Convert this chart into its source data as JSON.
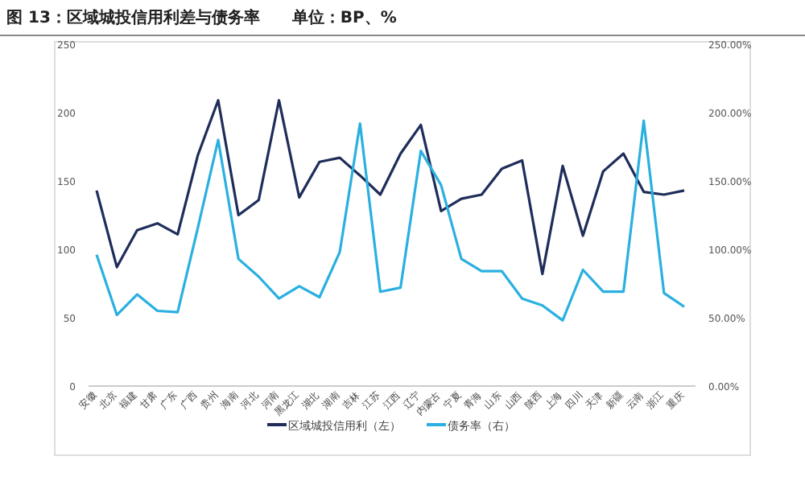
{
  "chart_data": {
    "type": "line",
    "title": "图 13：区域城投信用利差与债务率　　单位：BP、%",
    "categories": [
      "安徽",
      "北京",
      "福建",
      "甘肃",
      "广东",
      "广西",
      "贵州",
      "海南",
      "河北",
      "河南",
      "黑龙江",
      "湖北",
      "湖南",
      "吉林",
      "江苏",
      "江西",
      "辽宁",
      "内蒙古",
      "宁夏",
      "青海",
      "山东",
      "山西",
      "陕西",
      "上海",
      "四川",
      "天津",
      "新疆",
      "云南",
      "浙江",
      "重庆"
    ],
    "series": [
      {
        "name": "区域城投信用利（左）",
        "color": "#1f2d5a",
        "values": [
          143,
          87,
          114,
          119,
          111,
          169,
          209,
          125,
          136,
          209,
          138,
          164,
          167,
          154,
          140,
          170,
          191,
          128,
          137,
          140,
          159,
          165,
          82,
          161,
          110,
          157,
          170,
          142,
          140,
          143
        ]
      },
      {
        "name": "债务率（右）",
        "color": "#2ab0e0",
        "axis": "y2",
        "values": [
          96,
          52,
          67,
          55,
          54,
          116,
          180,
          93,
          80,
          64,
          73,
          65,
          98,
          192,
          69,
          72,
          172,
          147,
          93,
          84,
          84,
          64,
          59,
          48,
          85,
          69,
          69,
          194,
          68,
          58
        ]
      }
    ],
    "ylim": [
      0,
      250
    ],
    "yticks": [
      0,
      50,
      100,
      150,
      200,
      250
    ],
    "y2lim": [
      0,
      250
    ],
    "y2ticks": [
      {
        "value": 0,
        "label": "0.00%"
      },
      {
        "value": 50,
        "label": "50.00%"
      },
      {
        "value": 100,
        "label": "100.00%"
      },
      {
        "value": 150,
        "label": "150.00%"
      },
      {
        "value": 200,
        "label": "200.00%"
      },
      {
        "value": 250,
        "label": "250.00%"
      }
    ],
    "legend": "bottom"
  }
}
